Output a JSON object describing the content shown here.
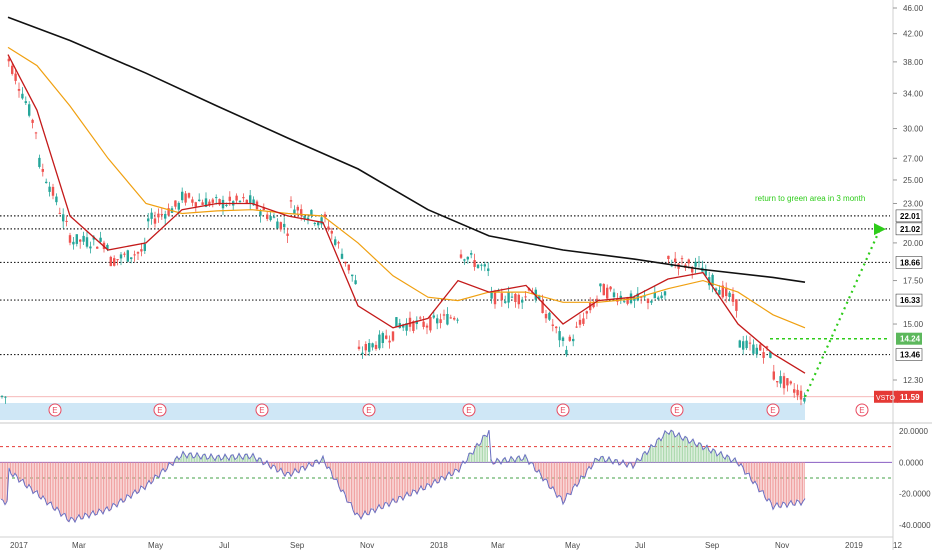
{
  "colors": {
    "candle_up": "#26a69a",
    "candle_down": "#ef5350",
    "ma_fast": "#c41a1a",
    "ma_mid": "#f0a010",
    "ma_slow": "#111111",
    "volume": "#a7d3ef",
    "osc_line": "#6a6fc2",
    "osc_pos_fill": "#a5d6a7",
    "osc_neg_fill": "#ef9a9a",
    "upper_band": "#e53935",
    "lower_band": "#43a047",
    "target_green": "#2ecc1a",
    "level_line": "#222222",
    "earnings": "#e84a5f"
  },
  "chart_data": [
    {
      "type": "line",
      "title": "",
      "ticker": "VSTO",
      "last_price": "11.59",
      "annotation": "return to green area in 3 month",
      "x_ticks": [
        "2017",
        "Mar",
        "May",
        "Jul",
        "Sep",
        "Nov",
        "2018",
        "Mar",
        "May",
        "Jul",
        "Sep",
        "Nov",
        "2019",
        "12"
      ],
      "y_ticks": [
        "46.00",
        "42.00",
        "38.00",
        "34.00",
        "30.00",
        "27.00",
        "25.00",
        "23.00",
        "20.00",
        "17.50",
        "15.00",
        "12.30"
      ],
      "ylim": [
        10.5,
        46.0
      ],
      "scale": "log",
      "horizontal_levels": [
        "22.01",
        "21.02",
        "18.66",
        "16.33",
        "13.46"
      ],
      "target_level": "14.24",
      "earnings_marker": "E",
      "earnings_count": 9,
      "series": [
        {
          "style": "candles",
          "points": [
            [
              "Jan 2017",
              39.0
            ],
            [
              "Jan 2017",
              38.5
            ],
            [
              "Feb 2017",
              29.5
            ],
            [
              "Feb 2017",
              28.0
            ],
            [
              "Feb 2017",
              27.0
            ],
            [
              "Mar 2017",
              20.5
            ],
            [
              "Mar 2017",
              20.2
            ],
            [
              "Apr 2017",
              20.0
            ],
            [
              "Apr 2017",
              18.7
            ],
            [
              "May 2017",
              19.5
            ],
            [
              "May 2017",
              21.5
            ],
            [
              "Jun 2017",
              23.0
            ],
            [
              "Jun 2017",
              23.5
            ],
            [
              "Jul 2017",
              23.0
            ],
            [
              "Aug 2017",
              23.2
            ],
            [
              "Aug 2017",
              23.0
            ],
            [
              "Sep 2017",
              21.0
            ],
            [
              "Sep 2017",
              23.0
            ],
            [
              "Oct 2017",
              21.5
            ],
            [
              "Oct 2017",
              22.0
            ],
            [
              "Nov 2017",
              17.0
            ],
            [
              "Nov 2017",
              13.5
            ],
            [
              "Dec 2017",
              14.5
            ],
            [
              "Dec 2017",
              15.0
            ],
            [
              "Jan 2018",
              15.0
            ],
            [
              "Feb 2018",
              15.5
            ],
            [
              "Feb 2018",
              19.5
            ],
            [
              "Mar 2018",
              18.0
            ],
            [
              "Mar 2018",
              16.5
            ],
            [
              "Apr 2018",
              16.5
            ],
            [
              "Apr 2018",
              17.5
            ],
            [
              "May 2018",
              14.0
            ],
            [
              "May 2018",
              13.5
            ],
            [
              "Jun 2018",
              16.5
            ],
            [
              "Jun 2018",
              17.0
            ],
            [
              "Jul 2018",
              16.3
            ],
            [
              "Aug 2018",
              16.5
            ],
            [
              "Aug 2018",
              18.8
            ],
            [
              "Sep 2018",
              18.3
            ],
            [
              "Sep 2018",
              18.0
            ],
            [
              "Oct 2018",
              16.0
            ],
            [
              "Oct 2018",
              14.0
            ],
            [
              "Nov 2018",
              13.5
            ],
            [
              "Nov 2018",
              12.5
            ],
            [
              "Dec 2018",
              11.59
            ]
          ]
        },
        {
          "name": "",
          "style": "ma_fast",
          "points": [
            [
              "Jan 2017",
              39.0
            ],
            [
              "Feb 2017",
              32.0
            ],
            [
              "Mar 2017",
              22.0
            ],
            [
              "Apr 2017",
              19.5
            ],
            [
              "May 2017",
              20.0
            ],
            [
              "Jun 2017",
              22.5
            ],
            [
              "Jul 2017",
              23.0
            ],
            [
              "Aug 2017",
              23.0
            ],
            [
              "Sep 2017",
              22.0
            ],
            [
              "Oct 2017",
              21.5
            ],
            [
              "Nov 2017",
              16.0
            ],
            [
              "Dec 2017",
              14.8
            ],
            [
              "Jan 2018",
              15.3
            ],
            [
              "Feb 2018",
              17.5
            ],
            [
              "Mar 2018",
              16.8
            ],
            [
              "Apr 2018",
              17.2
            ],
            [
              "May 2018",
              15.0
            ],
            [
              "Jun 2018",
              16.3
            ],
            [
              "Jul 2018",
              16.5
            ],
            [
              "Aug 2018",
              17.6
            ],
            [
              "Sep 2018",
              18.0
            ],
            [
              "Oct 2018",
              15.0
            ],
            [
              "Nov 2018",
              13.5
            ],
            [
              "Dec 2018",
              12.6
            ]
          ]
        },
        {
          "name": "",
          "style": "ma_mid",
          "points": [
            [
              "Jan 2017",
              40.0
            ],
            [
              "Feb 2017",
              37.5
            ],
            [
              "Mar 2017",
              32.5
            ],
            [
              "Apr 2017",
              27.0
            ],
            [
              "May 2017",
              23.0
            ],
            [
              "Jun 2017",
              22.2
            ],
            [
              "Jul 2017",
              22.4
            ],
            [
              "Aug 2017",
              22.5
            ],
            [
              "Sep 2017",
              22.2
            ],
            [
              "Oct 2017",
              22.0
            ],
            [
              "Nov 2017",
              20.0
            ],
            [
              "Dec 2017",
              17.8
            ],
            [
              "Jan 2018",
              16.5
            ],
            [
              "Feb 2018",
              16.3
            ],
            [
              "Mar 2018",
              16.8
            ],
            [
              "Apr 2018",
              16.8
            ],
            [
              "May 2018",
              16.2
            ],
            [
              "Jun 2018",
              16.2
            ],
            [
              "Jul 2018",
              16.4
            ],
            [
              "Aug 2018",
              17.0
            ],
            [
              "Sep 2018",
              17.5
            ],
            [
              "Oct 2018",
              16.8
            ],
            [
              "Nov 2018",
              15.5
            ],
            [
              "Dec 2018",
              14.8
            ]
          ]
        },
        {
          "name": "",
          "style": "ma_slow",
          "points": [
            [
              "Jan 2017",
              44.5
            ],
            [
              "Mar 2017",
              41.0
            ],
            [
              "May 2017",
              36.5
            ],
            [
              "Jul 2017",
              32.5
            ],
            [
              "Sep 2017",
              29.0
            ],
            [
              "Nov 2017",
              26.0
            ],
            [
              "Jan 2018",
              22.5
            ],
            [
              "Mar 2018",
              20.5
            ],
            [
              "May 2018",
              19.5
            ],
            [
              "Jul 2018",
              18.9
            ],
            [
              "Sep 2018",
              18.2
            ],
            [
              "Nov 2018",
              17.7
            ],
            [
              "Dec 2018",
              17.4
            ]
          ]
        },
        {
          "name": "",
          "style": "forecast",
          "points": [
            [
              "Dec 2018",
              11.59
            ],
            [
              "Jan 2019",
              21.0
            ]
          ]
        }
      ]
    },
    {
      "type": "area",
      "title": "",
      "y_ticks": [
        "20.0000",
        "0.0000",
        "-20.0000",
        "-40.0000"
      ],
      "ylim": [
        -42,
        22
      ],
      "upper_band": 10,
      "lower_band": -10,
      "series": [
        {
          "name": "",
          "points": [
            [
              "Jan 2017",
              -5
            ],
            [
              "Feb 2017",
              -20
            ],
            [
              "Mar 2017",
              -37
            ],
            [
              "Apr 2017",
              -30
            ],
            [
              "May 2017",
              -15
            ],
            [
              "Jun 2017",
              5
            ],
            [
              "Jul 2017",
              3
            ],
            [
              "Aug 2017",
              4
            ],
            [
              "Sep 2017",
              -8
            ],
            [
              "Oct 2017",
              2
            ],
            [
              "Nov 2017",
              -35
            ],
            [
              "Dec 2017",
              -25
            ],
            [
              "Jan 2018",
              -15
            ],
            [
              "Feb 2018",
              -5
            ],
            [
              "Mar 2018",
              20
            ],
            [
              "Mar 2018",
              0
            ],
            [
              "Apr 2018",
              3
            ],
            [
              "May 2018",
              -25
            ],
            [
              "Jun 2018",
              3
            ],
            [
              "Jul 2018",
              -2
            ],
            [
              "Aug 2018",
              20
            ],
            [
              "Sep 2018",
              10
            ],
            [
              "Oct 2018",
              0
            ],
            [
              "Nov 2018",
              -28
            ],
            [
              "Dec 2018",
              -25
            ]
          ]
        }
      ]
    }
  ]
}
